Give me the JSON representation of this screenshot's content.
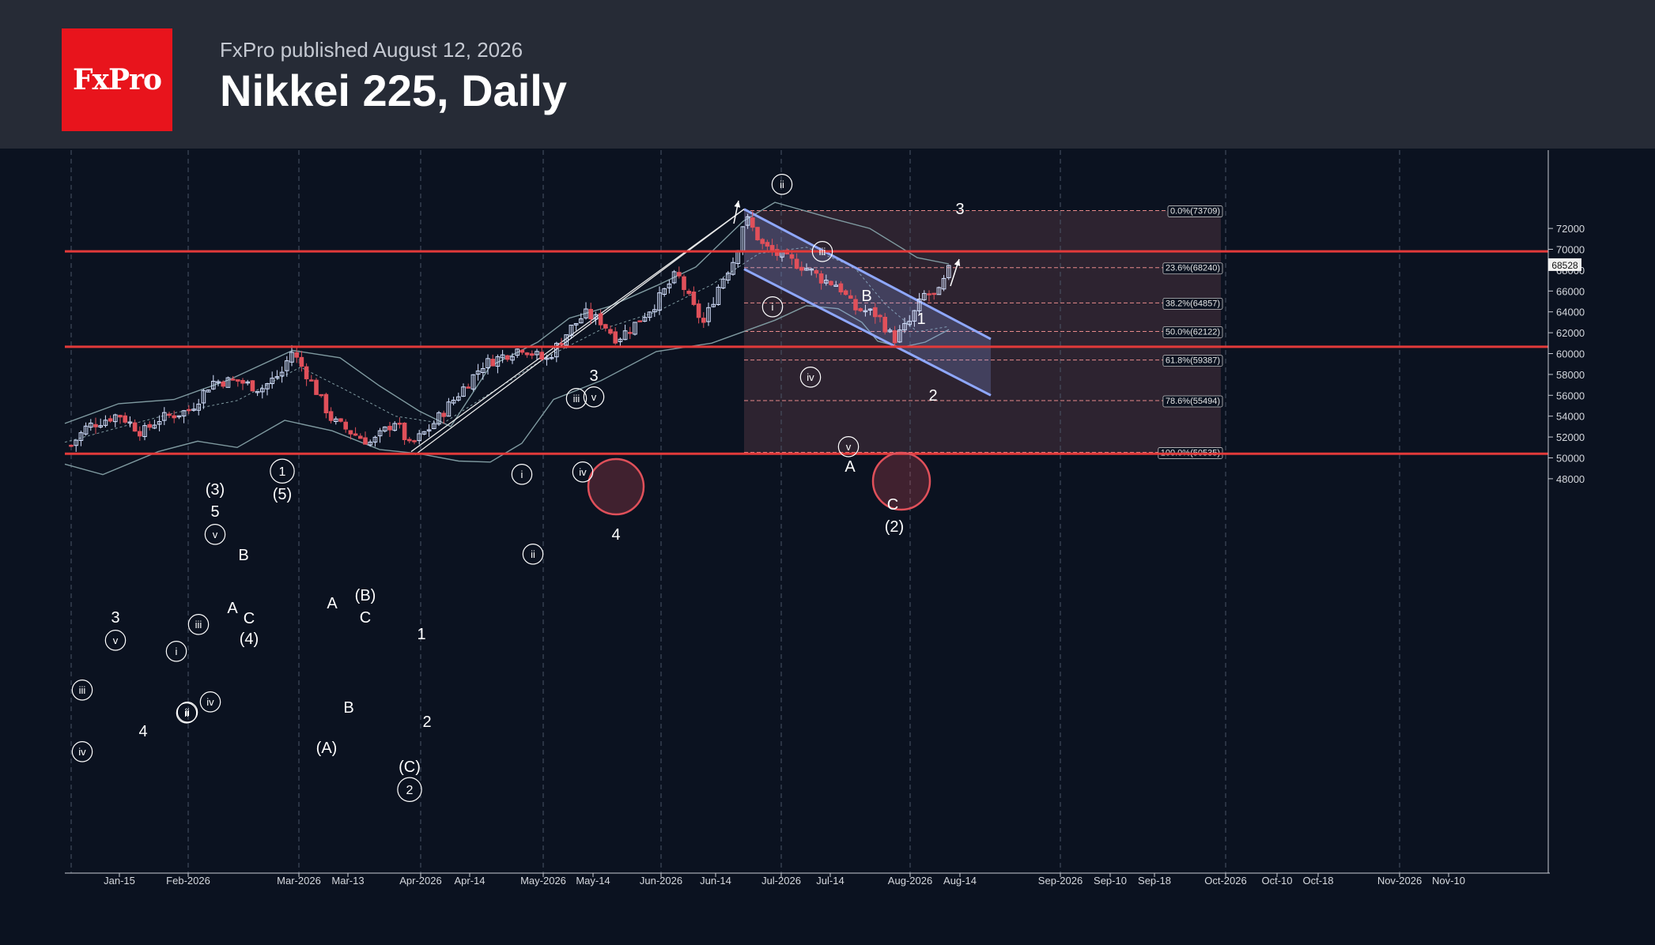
{
  "header": {
    "logo_text": "FxPro",
    "published": "FxPro published August 12, 2026",
    "title": "Nikkei 225, Daily"
  },
  "colors": {
    "background": "#0b1220",
    "header": "#262b36",
    "brand_red": "#e8141c",
    "up_candle": "#d6e2ff",
    "down_candle": "#e0505a",
    "channel": "#8fa8ff",
    "fib_zone": "#3a2a35",
    "bollinger": "#7f9aa0"
  },
  "chart_data": {
    "type": "candlestick",
    "title": "Nikkei 225, Daily",
    "ylim": [
      46000,
      74000
    ],
    "y_ticks": [
      48000,
      50000,
      52000,
      54000,
      56000,
      58000,
      60000,
      62000,
      64000,
      66000,
      68000,
      70000,
      72000
    ],
    "x_ticks": [
      "Jan-15",
      "Feb-2026",
      "Mar-2026",
      "Mar-13",
      "Apr-2026",
      "Apr-14",
      "May-2026",
      "May-14",
      "Jun-2026",
      "Jun-14",
      "Jul-2026",
      "Jul-14",
      "Aug-2026",
      "Aug-14",
      "Sep-2026",
      "Sep-10",
      "Sep-18",
      "Oct-2026",
      "Oct-10",
      "Oct-18",
      "Nov-2026",
      "Nov-10"
    ],
    "last_price": "68528",
    "horizontal_levels": [
      69800,
      60650,
      50400
    ],
    "fibonacci": [
      {
        "label": "0.0%(73709)",
        "value": 73709
      },
      {
        "label": "23.6%(68240)",
        "value": 68240
      },
      {
        "label": "38.2%(64857)",
        "value": 64857
      },
      {
        "label": "50.0%(62122)",
        "value": 62122
      },
      {
        "label": "61.8%(59387)",
        "value": 59387
      },
      {
        "label": "78.6%(55494)",
        "value": 55494
      },
      {
        "label": "100.0%(50535)",
        "value": 50535
      }
    ],
    "wave_labels": [
      "3",
      "iii",
      "v",
      "iv",
      "i",
      "ii",
      "4",
      "(3)",
      "5",
      "v",
      "iii",
      "iv",
      "ii",
      "B",
      "A",
      "C",
      "(4)",
      "1",
      "(5)",
      "A",
      "(B)",
      "C",
      "B",
      "(A)",
      "1",
      "2",
      "(C)",
      "2",
      "i",
      "ii",
      "iv",
      "3",
      "iii",
      "v",
      "4",
      "ii",
      "i",
      "iv",
      "iii",
      "B",
      "v",
      "A",
      "C",
      "(2)",
      "1",
      "2",
      "3"
    ]
  }
}
